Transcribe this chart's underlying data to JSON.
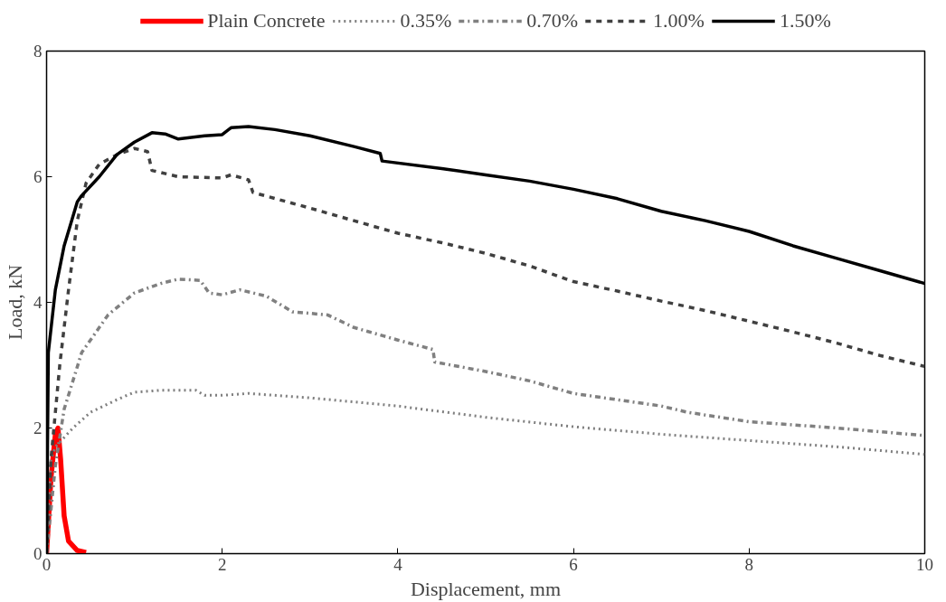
{
  "chart_data": {
    "type": "line",
    "xlabel": "Displacement, mm",
    "ylabel": "Load, kN",
    "xlim": [
      0,
      10
    ],
    "ylim": [
      0,
      8
    ],
    "xticks": [
      0,
      2,
      4,
      6,
      8,
      10
    ],
    "yticks": [
      0,
      2,
      4,
      6,
      8
    ],
    "grid": false,
    "legend": "top",
    "marker": "none",
    "series": [
      {
        "name": "Plain Concrete",
        "color": "#ff0000",
        "line_style": "solid",
        "x": [
          0,
          0.05,
          0.1,
          0.13,
          0.16,
          0.2,
          0.25,
          0.35,
          0.45
        ],
        "values": [
          0,
          1.2,
          1.9,
          2.0,
          1.5,
          0.6,
          0.2,
          0.05,
          0.02
        ]
      },
      {
        "name": "0.35%",
        "color": "#7f7f7f",
        "line_style": "dotted",
        "x": [
          0,
          0.05,
          0.1,
          0.3,
          0.5,
          0.8,
          1.0,
          1.3,
          1.7,
          1.8,
          2.0,
          2.3,
          3,
          4,
          5,
          6,
          7,
          8,
          9,
          10
        ],
        "values": [
          0,
          1.5,
          1.7,
          2.0,
          2.25,
          2.45,
          2.57,
          2.6,
          2.6,
          2.52,
          2.52,
          2.55,
          2.48,
          2.35,
          2.17,
          2.02,
          1.9,
          1.8,
          1.7,
          1.58
        ]
      },
      {
        "name": "0.70%",
        "color": "#808080",
        "line_style": "dashdot",
        "x": [
          0,
          0.1,
          0.2,
          0.4,
          0.7,
          1.0,
          1.3,
          1.5,
          1.75,
          1.85,
          2.0,
          2.2,
          2.5,
          2.8,
          3.2,
          3.5,
          4,
          4.4,
          4.42,
          5,
          5.5,
          6,
          6.5,
          7,
          7.3,
          8,
          9,
          10
        ],
        "values": [
          0,
          1.4,
          2.3,
          3.2,
          3.8,
          4.15,
          4.3,
          4.37,
          4.35,
          4.15,
          4.12,
          4.2,
          4.1,
          3.85,
          3.8,
          3.6,
          3.4,
          3.25,
          3.05,
          2.9,
          2.75,
          2.55,
          2.45,
          2.35,
          2.25,
          2.1,
          2.0,
          1.88
        ]
      },
      {
        "name": "1.00%",
        "color": "#404040",
        "line_style": "dashed",
        "x": [
          0,
          0.05,
          0.15,
          0.25,
          0.35,
          0.45,
          0.6,
          0.8,
          1.0,
          1.15,
          1.2,
          1.5,
          2.0,
          2.1,
          2.3,
          2.35,
          3,
          3.5,
          4,
          4.5,
          5,
          5.5,
          6,
          6.5,
          7,
          7.5,
          8,
          8.5,
          9,
          9.5,
          10
        ],
        "values": [
          0,
          1.5,
          3.0,
          4.2,
          5.3,
          5.9,
          6.2,
          6.35,
          6.45,
          6.4,
          6.1,
          6.0,
          5.98,
          6.03,
          5.95,
          5.75,
          5.5,
          5.3,
          5.1,
          4.95,
          4.78,
          4.58,
          4.33,
          4.18,
          4.02,
          3.87,
          3.7,
          3.53,
          3.35,
          3.15,
          2.98
        ]
      },
      {
        "name": "1.50%",
        "color": "#000000",
        "line_style": "solid",
        "x": [
          0,
          0.02,
          0.1,
          0.2,
          0.35,
          0.4,
          0.6,
          0.8,
          1.0,
          1.2,
          1.35,
          1.5,
          1.8,
          2.0,
          2.1,
          2.3,
          2.6,
          3.0,
          3.5,
          3.8,
          3.82,
          4.5,
          5,
          5.5,
          6,
          6.5,
          7,
          7.5,
          8,
          8.5,
          9,
          9.5,
          10
        ],
        "values": [
          0,
          3.2,
          4.2,
          4.9,
          5.6,
          5.7,
          6.0,
          6.35,
          6.55,
          6.7,
          6.68,
          6.6,
          6.65,
          6.67,
          6.78,
          6.8,
          6.75,
          6.65,
          6.48,
          6.37,
          6.25,
          6.13,
          6.03,
          5.93,
          5.8,
          5.65,
          5.45,
          5.3,
          5.13,
          4.9,
          4.7,
          4.5,
          4.3
        ]
      }
    ]
  }
}
